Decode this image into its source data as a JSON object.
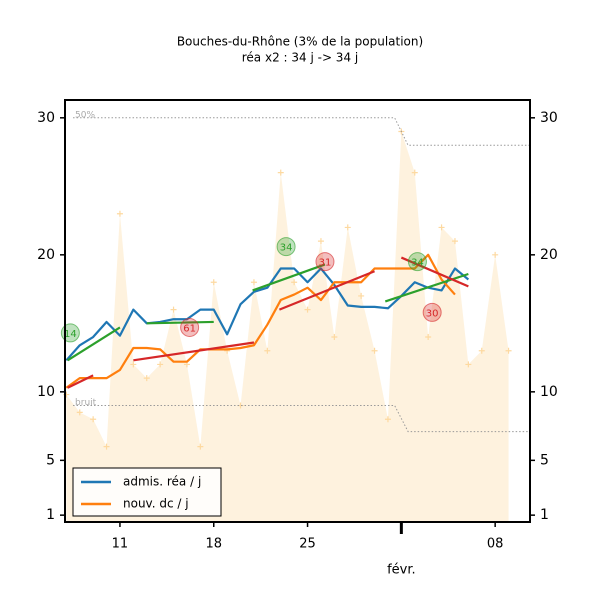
{
  "chart_data": {
    "type": "line",
    "title": "Bouches-du-Rhône (3% de la population)",
    "subtitle": "réa x2 : 34 j -> 34 j",
    "xlim": [
      6.9,
      41.6
    ],
    "ylim": [
      0.5,
      31.3
    ],
    "yticks": [
      1,
      5,
      10,
      20,
      30
    ],
    "xticks": [
      11,
      18,
      25,
      {
        "value": 39,
        "label": "08"
      }
    ],
    "month_ticks": [
      {
        "value": 32,
        "label": "févr."
      }
    ],
    "legend": "lower left",
    "x": [
      7,
      8,
      9,
      10,
      11,
      12,
      13,
      14,
      15,
      16,
      17,
      18,
      19,
      20,
      21,
      22,
      23,
      24,
      25,
      26,
      27,
      28,
      29,
      30,
      31,
      32,
      33,
      34,
      35,
      36,
      37
    ],
    "series": [
      {
        "name": "admis. réa / j",
        "color": "#1f77b4",
        "values": [
          12.3,
          13.4,
          14,
          15.1,
          14.1,
          16,
          15,
          15.1,
          15.3,
          15.3,
          16,
          16,
          14.2,
          16.4,
          17.3,
          17.6,
          19,
          19,
          18,
          19,
          17.8,
          16.3,
          16.2,
          16.2,
          16.1,
          17,
          18,
          17.6,
          17.4,
          19,
          18.2
        ]
      },
      {
        "name": "nouv. dc / j",
        "color": "#ff7f0e",
        "values": [
          10.3,
          11,
          11,
          11,
          11.6,
          13.2,
          13.2,
          13.1,
          12.2,
          12.2,
          13.1,
          13.1,
          13.1,
          13.2,
          13.4,
          14.9,
          16.7,
          17.1,
          17.6,
          16.7,
          18,
          18,
          18,
          19,
          19,
          19,
          19,
          20,
          18.2,
          17.1,
          null
        ]
      }
    ],
    "raw": {
      "color": "#fdd9a0",
      "x": [
        7,
        8,
        9,
        10,
        11,
        12,
        13,
        14,
        15,
        16,
        17,
        18,
        19,
        20,
        21,
        22,
        23,
        24,
        25,
        26,
        27,
        28,
        29,
        30,
        31,
        32,
        33,
        34,
        35,
        36,
        37,
        38,
        39,
        40
      ],
      "values": [
        9.8,
        8.5,
        8,
        6,
        23,
        12,
        11,
        12,
        16,
        12,
        6,
        18,
        13,
        9,
        18,
        13,
        26,
        18,
        16,
        21,
        14,
        22,
        17,
        13,
        8,
        29,
        26,
        14,
        22,
        21,
        12,
        13,
        20,
        13
      ]
    },
    "trend_lines": [
      {
        "color": "#2ca02c",
        "x": [
          7.1,
          11
        ],
        "values": [
          12.3,
          14.7
        ]
      },
      {
        "color": "#2ca02c",
        "x": [
          13,
          18
        ],
        "values": [
          15,
          15.1
        ]
      },
      {
        "color": "#2ca02c",
        "x": [
          20.9,
          26.3
        ],
        "values": [
          17.4,
          19.3
        ]
      },
      {
        "color": "#2ca02c",
        "x": [
          30.8,
          37
        ],
        "values": [
          16.6,
          18.6
        ]
      },
      {
        "color": "#d62728",
        "x": [
          7.1,
          9
        ],
        "values": [
          10.3,
          11.2
        ]
      },
      {
        "color": "#d62728",
        "x": [
          12,
          21
        ],
        "values": [
          12.3,
          13.6
        ]
      },
      {
        "color": "#d62728",
        "x": [
          22.9,
          30
        ],
        "values": [
          16,
          18.8
        ]
      },
      {
        "color": "#d62728",
        "x": [
          32,
          37
        ],
        "values": [
          19.8,
          17.7
        ]
      }
    ],
    "thresholds": [
      {
        "label": "50%",
        "x": [
          7.5,
          31.5,
          32.5,
          41.6
        ],
        "values": [
          30,
          30,
          28,
          28
        ]
      },
      {
        "label": "bruit",
        "x": [
          7.5,
          31.5,
          32.5,
          41.6
        ],
        "values": [
          9,
          9,
          7.1,
          7.1
        ]
      }
    ],
    "annotations": [
      {
        "text": "14",
        "x": 7.3,
        "y": 14.3,
        "color": "#2ca02c"
      },
      {
        "text": "61",
        "x": 16.2,
        "y": 14.7,
        "color": "#d62728"
      },
      {
        "text": "34",
        "x": 23.4,
        "y": 20.6,
        "color": "#2ca02c"
      },
      {
        "text": "31",
        "x": 26.3,
        "y": 19.5,
        "color": "#d62728"
      },
      {
        "text": "34",
        "x": 33.2,
        "y": 19.5,
        "color": "#2ca02c"
      },
      {
        "text": "30",
        "x": 34.3,
        "y": 15.8,
        "color": "#d62728"
      }
    ]
  }
}
